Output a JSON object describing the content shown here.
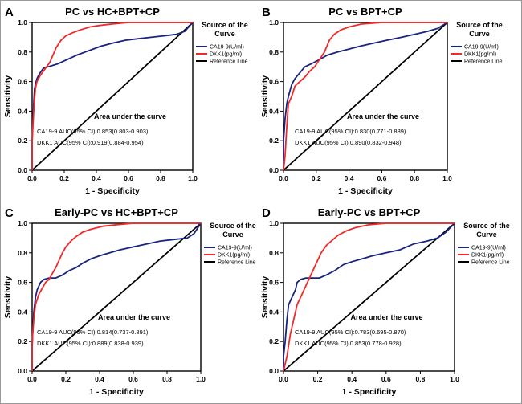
{
  "figure_border_color": "#9a9a9a",
  "colors": {
    "ca199": "#1a237e",
    "dkk1": "#ef2a2a",
    "reference": "#000000"
  },
  "chart_data": [
    {
      "type": "line",
      "panel_label": "A",
      "title": "PC vs HC+BPT+CP",
      "xlabel": "1 - Specificity",
      "ylabel": "Sensitivity",
      "xlim": [
        0,
        1
      ],
      "ylim": [
        0,
        1
      ],
      "x_ticks": [
        "0.0",
        "0.2",
        "0.4",
        "0.6",
        "0.8",
        "1.0"
      ],
      "y_ticks": [
        "0.0",
        "0.2",
        "0.4",
        "0.6",
        "0.8",
        "1.0"
      ],
      "grid": false,
      "legend": {
        "title": "Source of the Curve",
        "position": "right",
        "entries": [
          "CA19-9(U/ml)",
          "DKK1(pg/ml)",
          "Reference Line"
        ]
      },
      "annotation": {
        "title": "Area under the curve",
        "lines": [
          "CA19-9  AUC(95% CI):0.853(0.803-0.903)",
          "DKK1  AUC(95% CI):0.919(0.884-0.954)"
        ]
      },
      "series": [
        {
          "name": "CA19-9(U/ml)",
          "color": "#1a237e",
          "points": [
            [
              0,
              0
            ],
            [
              0,
              0.18
            ],
            [
              0.005,
              0.34
            ],
            [
              0.01,
              0.45
            ],
            [
              0.015,
              0.55
            ],
            [
              0.02,
              0.58
            ],
            [
              0.03,
              0.62
            ],
            [
              0.04,
              0.64
            ],
            [
              0.05,
              0.66
            ],
            [
              0.07,
              0.69
            ],
            [
              0.1,
              0.7
            ],
            [
              0.13,
              0.71
            ],
            [
              0.16,
              0.72
            ],
            [
              0.2,
              0.74
            ],
            [
              0.24,
              0.76
            ],
            [
              0.28,
              0.78
            ],
            [
              0.33,
              0.8
            ],
            [
              0.38,
              0.82
            ],
            [
              0.43,
              0.84
            ],
            [
              0.5,
              0.86
            ],
            [
              0.58,
              0.88
            ],
            [
              0.66,
              0.89
            ],
            [
              0.74,
              0.9
            ],
            [
              0.82,
              0.91
            ],
            [
              0.9,
              0.92
            ],
            [
              0.95,
              0.94
            ],
            [
              1,
              1
            ]
          ]
        },
        {
          "name": "DKK1(pg/ml)",
          "color": "#ef2a2a",
          "points": [
            [
              0,
              0
            ],
            [
              0,
              0.2
            ],
            [
              0.01,
              0.4
            ],
            [
              0.02,
              0.55
            ],
            [
              0.03,
              0.6
            ],
            [
              0.05,
              0.64
            ],
            [
              0.07,
              0.67
            ],
            [
              0.09,
              0.7
            ],
            [
              0.11,
              0.73
            ],
            [
              0.13,
              0.78
            ],
            [
              0.15,
              0.83
            ],
            [
              0.18,
              0.88
            ],
            [
              0.21,
              0.91
            ],
            [
              0.25,
              0.93
            ],
            [
              0.3,
              0.95
            ],
            [
              0.36,
              0.97
            ],
            [
              0.42,
              0.98
            ],
            [
              0.5,
              0.99
            ],
            [
              0.6,
              1
            ],
            [
              1,
              1
            ]
          ]
        },
        {
          "name": "Reference Line",
          "color": "#000000",
          "points": [
            [
              0,
              0
            ],
            [
              1,
              1
            ]
          ]
        }
      ]
    },
    {
      "type": "line",
      "panel_label": "B",
      "title": "PC vs BPT+CP",
      "xlabel": "1 - Specificity",
      "ylabel": "Sensitivity",
      "xlim": [
        0,
        1
      ],
      "ylim": [
        0,
        1
      ],
      "x_ticks": [
        "0.0",
        "0.2",
        "0.4",
        "0.6",
        "0.8",
        "1.0"
      ],
      "y_ticks": [
        "0.0",
        "0.2",
        "0.4",
        "0.6",
        "0.8",
        "1.0"
      ],
      "grid": false,
      "legend": {
        "title": "Source of the Curve",
        "position": "right",
        "entries": [
          "CA19-9(U/ml)",
          "DKK1(pg/ml)",
          "Reference Line"
        ]
      },
      "annotation": {
        "title": "Area under the curve",
        "lines": [
          "CA19-9  AUC(95% CI):0.830(0.771-0.889)",
          "DKK1  AUC(95% CI):0.890(0.832-0.948)"
        ]
      },
      "series": [
        {
          "name": "CA19-9(U/ml)",
          "color": "#1a237e",
          "points": [
            [
              0,
              0
            ],
            [
              0,
              0.2
            ],
            [
              0.01,
              0.35
            ],
            [
              0.02,
              0.45
            ],
            [
              0.03,
              0.5
            ],
            [
              0.05,
              0.58
            ],
            [
              0.07,
              0.62
            ],
            [
              0.1,
              0.66
            ],
            [
              0.13,
              0.7
            ],
            [
              0.17,
              0.72
            ],
            [
              0.22,
              0.75
            ],
            [
              0.27,
              0.78
            ],
            [
              0.33,
              0.8
            ],
            [
              0.4,
              0.82
            ],
            [
              0.47,
              0.84
            ],
            [
              0.55,
              0.86
            ],
            [
              0.63,
              0.88
            ],
            [
              0.72,
              0.9
            ],
            [
              0.8,
              0.92
            ],
            [
              0.88,
              0.94
            ],
            [
              0.94,
              0.96
            ],
            [
              1,
              1
            ]
          ]
        },
        {
          "name": "DKK1(pg/ml)",
          "color": "#ef2a2a",
          "points": [
            [
              0,
              0
            ],
            [
              0.01,
              0.1
            ],
            [
              0.02,
              0.3
            ],
            [
              0.03,
              0.45
            ],
            [
              0.05,
              0.5
            ],
            [
              0.07,
              0.57
            ],
            [
              0.1,
              0.6
            ],
            [
              0.13,
              0.63
            ],
            [
              0.16,
              0.67
            ],
            [
              0.19,
              0.7
            ],
            [
              0.22,
              0.75
            ],
            [
              0.25,
              0.8
            ],
            [
              0.28,
              0.88
            ],
            [
              0.31,
              0.92
            ],
            [
              0.35,
              0.95
            ],
            [
              0.4,
              0.97
            ],
            [
              0.48,
              0.99
            ],
            [
              0.6,
              1
            ],
            [
              1,
              1
            ]
          ]
        },
        {
          "name": "Reference Line",
          "color": "#000000",
          "points": [
            [
              0,
              0
            ],
            [
              1,
              1
            ]
          ]
        }
      ]
    },
    {
      "type": "line",
      "panel_label": "C",
      "title": "Early-PC vs HC+BPT+CP",
      "xlabel": "1 - Specificity",
      "ylabel": "Sensitivity",
      "xlim": [
        0,
        1
      ],
      "ylim": [
        0,
        1
      ],
      "x_ticks": [
        "0.0",
        "0.2",
        "0.4",
        "0.6",
        "0.8",
        "1.0"
      ],
      "y_ticks": [
        "0.0",
        "0.2",
        "0.4",
        "0.6",
        "0.8",
        "1.0"
      ],
      "grid": false,
      "legend": {
        "title": "Source of the Curve",
        "position": "right",
        "entries": [
          "CA19-9(U/ml)",
          "DKK1(pg/ml)",
          "Reference Line"
        ]
      },
      "annotation": {
        "title": "Area under the curve",
        "lines": [
          "CA19-9  AUC(95% CI):0.814(0.737-0.891)",
          "DKK1  AUC(95% CI):0.889(0.838-0.939)"
        ]
      },
      "series": [
        {
          "name": "CA19-9(U/ml)",
          "color": "#1a237e",
          "points": [
            [
              0,
              0
            ],
            [
              0,
              0.15
            ],
            [
              0.005,
              0.3
            ],
            [
              0.01,
              0.4
            ],
            [
              0.02,
              0.5
            ],
            [
              0.03,
              0.55
            ],
            [
              0.05,
              0.6
            ],
            [
              0.07,
              0.62
            ],
            [
              0.1,
              0.63
            ],
            [
              0.14,
              0.63
            ],
            [
              0.18,
              0.65
            ],
            [
              0.22,
              0.68
            ],
            [
              0.26,
              0.7
            ],
            [
              0.3,
              0.73
            ],
            [
              0.35,
              0.76
            ],
            [
              0.4,
              0.78
            ],
            [
              0.46,
              0.8
            ],
            [
              0.52,
              0.82
            ],
            [
              0.6,
              0.84
            ],
            [
              0.68,
              0.86
            ],
            [
              0.76,
              0.88
            ],
            [
              0.84,
              0.89
            ],
            [
              0.92,
              0.9
            ],
            [
              0.96,
              0.93
            ],
            [
              1,
              1
            ]
          ]
        },
        {
          "name": "DKK1(pg/ml)",
          "color": "#ef2a2a",
          "points": [
            [
              0,
              0
            ],
            [
              0,
              0.2
            ],
            [
              0.01,
              0.35
            ],
            [
              0.02,
              0.45
            ],
            [
              0.04,
              0.52
            ],
            [
              0.06,
              0.56
            ],
            [
              0.08,
              0.6
            ],
            [
              0.1,
              0.62
            ],
            [
              0.12,
              0.66
            ],
            [
              0.14,
              0.7
            ],
            [
              0.16,
              0.75
            ],
            [
              0.18,
              0.8
            ],
            [
              0.2,
              0.84
            ],
            [
              0.23,
              0.88
            ],
            [
              0.26,
              0.91
            ],
            [
              0.3,
              0.94
            ],
            [
              0.35,
              0.96
            ],
            [
              0.42,
              0.98
            ],
            [
              0.5,
              0.99
            ],
            [
              0.6,
              1
            ],
            [
              1,
              1
            ]
          ]
        },
        {
          "name": "Reference Line",
          "color": "#000000",
          "points": [
            [
              0,
              0
            ],
            [
              1,
              1
            ]
          ]
        }
      ]
    },
    {
      "type": "line",
      "panel_label": "D",
      "title": "Early-PC vs BPT+CP",
      "xlabel": "1 - Specificity",
      "ylabel": "Sensitivity",
      "xlim": [
        0,
        1
      ],
      "ylim": [
        0,
        1
      ],
      "x_ticks": [
        "0.0",
        "0.2",
        "0.4",
        "0.6",
        "0.8",
        "1.0"
      ],
      "y_ticks": [
        "0.0",
        "0.2",
        "0.4",
        "0.6",
        "0.8",
        "1.0"
      ],
      "grid": false,
      "legend": {
        "title": "Source of the Curve",
        "position": "right",
        "entries": [
          "CA19-9(U/ml)",
          "DKK1(pg/ml)",
          "Reference Line"
        ]
      },
      "annotation": {
        "title": "Area under the curve",
        "lines": [
          "CA19-9  AUC(95% CI):0.783(0.695-0.870)",
          "DKK1  AUC(95% CI):0.853(0.778-0.928)"
        ]
      },
      "series": [
        {
          "name": "CA19-9(U/ml)",
          "color": "#1a237e",
          "points": [
            [
              0,
              0
            ],
            [
              0,
              0.1
            ],
            [
              0.01,
              0.2
            ],
            [
              0.02,
              0.35
            ],
            [
              0.03,
              0.45
            ],
            [
              0.05,
              0.5
            ],
            [
              0.07,
              0.55
            ],
            [
              0.08,
              0.6
            ],
            [
              0.1,
              0.62
            ],
            [
              0.13,
              0.63
            ],
            [
              0.17,
              0.63
            ],
            [
              0.21,
              0.63
            ],
            [
              0.25,
              0.65
            ],
            [
              0.3,
              0.68
            ],
            [
              0.35,
              0.72
            ],
            [
              0.4,
              0.74
            ],
            [
              0.46,
              0.76
            ],
            [
              0.52,
              0.78
            ],
            [
              0.6,
              0.8
            ],
            [
              0.68,
              0.82
            ],
            [
              0.76,
              0.86
            ],
            [
              0.84,
              0.88
            ],
            [
              0.9,
              0.9
            ],
            [
              0.95,
              0.94
            ],
            [
              1,
              1
            ]
          ]
        },
        {
          "name": "DKK1(pg/ml)",
          "color": "#ef2a2a",
          "points": [
            [
              0,
              0
            ],
            [
              0.02,
              0.1
            ],
            [
              0.04,
              0.25
            ],
            [
              0.06,
              0.35
            ],
            [
              0.08,
              0.45
            ],
            [
              0.1,
              0.5
            ],
            [
              0.12,
              0.55
            ],
            [
              0.14,
              0.6
            ],
            [
              0.16,
              0.65
            ],
            [
              0.18,
              0.7
            ],
            [
              0.2,
              0.75
            ],
            [
              0.22,
              0.8
            ],
            [
              0.25,
              0.85
            ],
            [
              0.28,
              0.88
            ],
            [
              0.32,
              0.92
            ],
            [
              0.37,
              0.95
            ],
            [
              0.42,
              0.97
            ],
            [
              0.5,
              0.99
            ],
            [
              0.6,
              1
            ],
            [
              1,
              1
            ]
          ]
        },
        {
          "name": "Reference Line",
          "color": "#000000",
          "points": [
            [
              0,
              0
            ],
            [
              1,
              1
            ]
          ]
        }
      ]
    }
  ]
}
